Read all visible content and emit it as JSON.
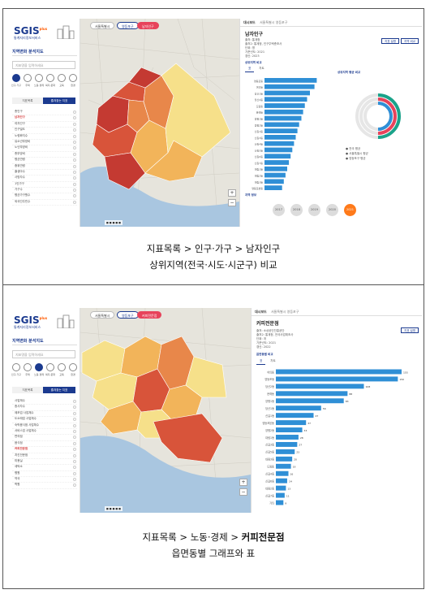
{
  "sidebar": {
    "logo": "SGIS",
    "logo_sup": "plus",
    "logo_sub": "통계지리정보서비스",
    "title": "지역변화 분석지도",
    "search_placeholder": "지표명을 입력하세요",
    "categories": [
      "인구·가구",
      "주택",
      "노동·경제",
      "복지·문화",
      "교육",
      "환경"
    ],
    "tab_off": "지표목록",
    "tab_on": "즐겨찾는 지표"
  },
  "panel1": {
    "map_buttons": [
      "서울특별시",
      "영등포구",
      "남자인구"
    ],
    "list_items": [
      "총인구",
      "남자인구",
      "여자인구",
      "인구밀도",
      "노령화지수",
      "유소년부양비",
      "노년부양비",
      "총부양비",
      "평균연령",
      "중위연령",
      "출생아수",
      "사망자수",
      "1인가구",
      "가구수",
      "평균가구원수",
      "외국인주민수"
    ],
    "selected_index": 1,
    "right_head_tag": "대시보드",
    "right_crumb": "서울특별시 영등포구",
    "right_title": "남자인구",
    "meta": [
      "출처: 통계청",
      "출처2: 통계청, 인구주택총조사",
      "단위: 명",
      "기준년도: 2021",
      "갱신: 2023"
    ],
    "right_btns": [
      "지표 설명",
      "지역 비교"
    ],
    "section_label": "상위지역 비교",
    "subtabs": [
      "표",
      "차트"
    ],
    "chart_head": "상위지역 평균 비교",
    "bars": [
      92,
      88,
      80,
      75,
      71,
      68,
      65,
      61,
      58,
      55,
      52,
      49,
      46,
      43,
      40,
      37,
      34,
      31
    ],
    "bar_labels": [
      "영등포동",
      "여의동",
      "당산1동",
      "당산2동",
      "도림동",
      "문래동",
      "양평1동",
      "양평2동",
      "신길1동",
      "신길3동",
      "신길4동",
      "신길5동",
      "신길6동",
      "신길7동",
      "대림1동",
      "대림2동",
      "대림3동",
      "영등포본동"
    ],
    "donut_legend": [
      "전국 평균",
      "서울특별시 평균",
      "영등포구 평균"
    ],
    "years": [
      "2017",
      "2018",
      "2019",
      "2020",
      "2021"
    ],
    "selected_year_index": 4,
    "sources": "지역 정보"
  },
  "panel2": {
    "map_buttons": [
      "서울특별시",
      "영등포구",
      "커피전문점"
    ],
    "list_items": [
      "사업체수",
      "종사자수",
      "제조업 사업체수",
      "도소매업 사업체수",
      "숙박음식점 사업체수",
      "서비스업 사업체수",
      "편의점",
      "음식점",
      "커피전문점",
      "치킨전문점",
      "미용실",
      "세탁소",
      "병원",
      "약국",
      "학원"
    ],
    "selected_index": 8,
    "right_head_tag": "대시보드",
    "right_crumb": "서울특별시 영등포구",
    "right_title": "커피전문점",
    "meta": [
      "출처: 소상공인진흥공단",
      "출처2: 통계청, 전국사업체조사",
      "단위: 개",
      "기준년도: 2021",
      "갱신: 2022"
    ],
    "right_btns": [
      "지표 설명"
    ],
    "section_label": "읍면동별 비교",
    "subtabs": [
      "표",
      "차트"
    ],
    "bars": [
      100,
      97,
      70,
      57,
      54,
      36,
      30,
      24,
      21,
      18,
      17,
      15,
      13,
      12,
      10,
      9,
      8,
      7,
      6
    ],
    "bar_values": [
      "155",
      "150",
      "108",
      "88",
      "83",
      "56",
      "47",
      "37",
      "33",
      "28",
      "27",
      "23",
      "20",
      "19",
      "16",
      "14",
      "13",
      "11",
      "9"
    ],
    "bar_labels": [
      "여의동",
      "영등포동",
      "당산2동",
      "문래동",
      "양평1동",
      "당산1동",
      "신길1동",
      "영등포본동",
      "양평2동",
      "대림1동",
      "신길3동",
      "신길5동",
      "대림3동",
      "도림동",
      "신길4동",
      "신길6동",
      "대림2동",
      "신길7동",
      "기타"
    ]
  },
  "captions": {
    "p1_line1": "지표목록 > 인구·가구  > 남자인구",
    "p1_line2": "상위지역(전국·시도·시군구) 비교",
    "p2_line1_pre": "지표목록 > 노동·경제    > ",
    "p2_line1_bold": "커피전문점",
    "p2_line2": "읍면동별 그래프와 표"
  },
  "colors": {
    "brand": "#1b3a8f",
    "accent": "#ff5a00",
    "bar": "#2f8fd6",
    "choropleth": [
      "#f6e08a",
      "#f2b45a",
      "#e8874a",
      "#d8543a",
      "#c43a32"
    ]
  }
}
